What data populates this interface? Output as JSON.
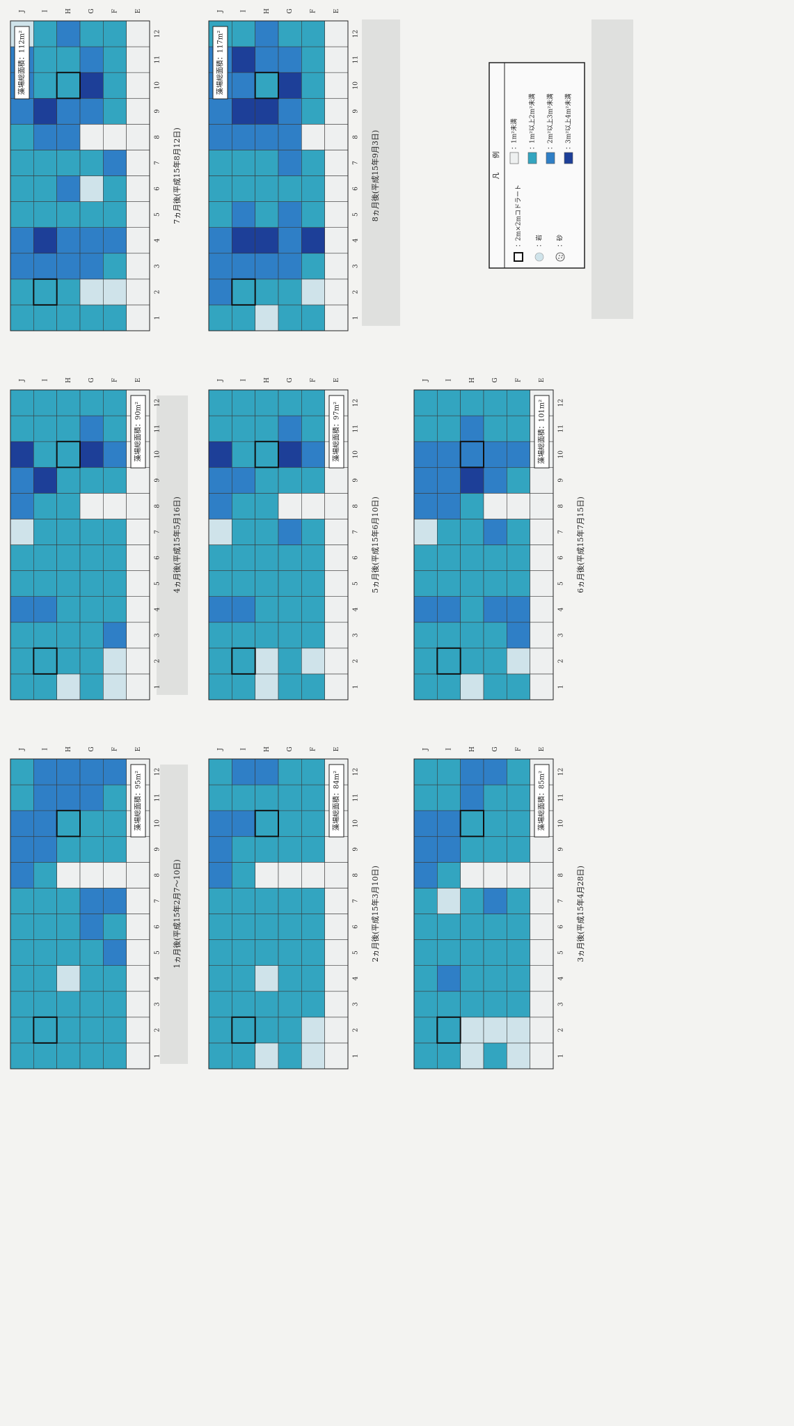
{
  "rows": [
    "J",
    "I",
    "H",
    "G",
    "F",
    "E"
  ],
  "columns": [
    1,
    2,
    3,
    4,
    5,
    6,
    7,
    8,
    9,
    10,
    11,
    12
  ],
  "legend": {
    "title": "凡　　例",
    "items": [
      {
        "label": "：2m×2mコドラート",
        "color": "#111111"
      },
      {
        "label": "：岩",
        "color": "#cfe3ea"
      },
      {
        "label": "：砂",
        "color": "#f4f4f4"
      },
      {
        "label": "：1m²未満",
        "color": "#eef0f0"
      },
      {
        "label": "：1m²以上2m²未満",
        "color": "#33a5c0"
      },
      {
        "label": "：2m²以上3m²未満",
        "color": "#2f7fc6"
      },
      {
        "label": "：3m²以上4m²未満",
        "color": "#1d3f98"
      }
    ]
  },
  "panels": [
    {
      "caption": "1ヵ月後(平成15年2月7～10日)",
      "area_label": "藻場総面積：95m²",
      "quadrats": [
        [
          1,
          1
        ],
        [
          2,
          9
        ]
      ],
      "grid": [
        [
          4,
          4,
          4,
          4,
          4,
          4,
          4,
          5,
          5,
          5,
          4,
          4
        ],
        [
          4,
          4,
          4,
          4,
          4,
          4,
          4,
          4,
          5,
          5,
          5,
          5
        ],
        [
          4,
          4,
          4,
          1,
          4,
          4,
          4,
          3,
          4,
          4,
          5,
          5
        ],
        [
          4,
          4,
          4,
          4,
          4,
          5,
          5,
          3,
          4,
          4,
          5,
          5
        ],
        [
          4,
          4,
          4,
          4,
          5,
          4,
          5,
          3,
          4,
          4,
          4,
          5
        ],
        [
          3,
          3,
          3,
          3,
          3,
          3,
          3,
          3,
          3,
          3,
          3,
          3
        ]
      ]
    },
    {
      "caption": "2ヵ月後(平成15年3月10日)",
      "area_label": "藻場総面積：84m²",
      "quadrats": [
        [
          1,
          1
        ],
        [
          2,
          9
        ]
      ],
      "grid": [
        [
          4,
          4,
          4,
          4,
          4,
          4,
          4,
          5,
          5,
          5,
          4,
          4
        ],
        [
          4,
          4,
          4,
          4,
          4,
          4,
          4,
          4,
          4,
          5,
          4,
          5
        ],
        [
          1,
          4,
          4,
          1,
          4,
          4,
          4,
          3,
          4,
          4,
          4,
          5
        ],
        [
          4,
          4,
          4,
          4,
          4,
          4,
          4,
          3,
          4,
          4,
          4,
          4
        ],
        [
          1,
          1,
          4,
          4,
          4,
          4,
          4,
          3,
          4,
          4,
          4,
          4
        ],
        [
          3,
          3,
          3,
          3,
          3,
          3,
          3,
          3,
          3,
          3,
          3,
          3
        ]
      ]
    },
    {
      "caption": "3ヵ月後(平成15年4月28日)",
      "area_label": "藻場総面積：85m²",
      "quadrats": [
        [
          1,
          1
        ],
        [
          2,
          9
        ]
      ],
      "grid": [
        [
          4,
          4,
          4,
          4,
          4,
          4,
          4,
          5,
          5,
          5,
          4,
          4
        ],
        [
          4,
          4,
          4,
          5,
          4,
          4,
          1,
          4,
          5,
          5,
          4,
          4
        ],
        [
          1,
          1,
          4,
          4,
          4,
          4,
          4,
          3,
          4,
          4,
          5,
          5
        ],
        [
          4,
          1,
          4,
          4,
          4,
          4,
          5,
          3,
          4,
          4,
          4,
          5
        ],
        [
          1,
          1,
          4,
          4,
          4,
          4,
          4,
          3,
          4,
          4,
          4,
          4
        ],
        [
          3,
          3,
          3,
          3,
          3,
          3,
          3,
          3,
          3,
          3,
          3,
          3
        ]
      ]
    },
    {
      "caption": "4ヵ月後(平成15年5月16日)",
      "area_label": "藻場総面積：90m²",
      "quadrats": [
        [
          1,
          1
        ],
        [
          2,
          9
        ]
      ],
      "grid": [
        [
          4,
          4,
          4,
          5,
          4,
          4,
          1,
          5,
          5,
          6,
          4,
          4
        ],
        [
          4,
          4,
          4,
          5,
          4,
          4,
          4,
          4,
          6,
          4,
          4,
          4
        ],
        [
          1,
          4,
          4,
          4,
          4,
          4,
          4,
          4,
          4,
          4,
          4,
          4
        ],
        [
          4,
          4,
          4,
          4,
          4,
          4,
          4,
          3,
          4,
          6,
          5,
          4
        ],
        [
          1,
          1,
          5,
          4,
          4,
          4,
          4,
          3,
          4,
          5,
          4,
          4
        ],
        [
          3,
          3,
          3,
          3,
          3,
          3,
          3,
          3,
          3,
          3,
          3,
          3
        ]
      ]
    },
    {
      "caption": "5ヵ月後(平成15年6月10日)",
      "area_label": "藻場総面積：97m²",
      "quadrats": [
        [
          1,
          1
        ],
        [
          2,
          9
        ]
      ],
      "grid": [
        [
          4,
          4,
          4,
          5,
          4,
          4,
          1,
          5,
          5,
          6,
          4,
          4
        ],
        [
          4,
          4,
          4,
          5,
          4,
          4,
          4,
          4,
          5,
          4,
          4,
          4
        ],
        [
          1,
          1,
          4,
          4,
          4,
          4,
          4,
          4,
          4,
          4,
          4,
          4
        ],
        [
          4,
          4,
          4,
          4,
          4,
          4,
          5,
          3,
          4,
          6,
          5,
          4
        ],
        [
          4,
          1,
          4,
          4,
          4,
          4,
          4,
          3,
          4,
          5,
          4,
          4
        ],
        [
          3,
          3,
          3,
          3,
          3,
          3,
          3,
          3,
          3,
          3,
          3,
          3
        ]
      ]
    },
    {
      "caption": "6ヵ月後(平成15年7月15日)",
      "area_label": "藻場総面積：101m²",
      "quadrats": [
        [
          1,
          1
        ],
        [
          2,
          9
        ]
      ],
      "grid": [
        [
          4,
          4,
          4,
          5,
          4,
          4,
          1,
          5,
          5,
          5,
          4,
          4
        ],
        [
          4,
          4,
          4,
          5,
          4,
          4,
          4,
          5,
          5,
          5,
          4,
          4
        ],
        [
          1,
          4,
          4,
          4,
          4,
          4,
          4,
          4,
          6,
          5,
          5,
          4
        ],
        [
          4,
          4,
          4,
          5,
          4,
          4,
          5,
          3,
          5,
          5,
          4,
          4
        ],
        [
          4,
          1,
          5,
          5,
          4,
          4,
          4,
          3,
          4,
          5,
          4,
          4
        ],
        [
          3,
          3,
          3,
          3,
          3,
          3,
          3,
          3,
          3,
          3,
          3,
          3
        ]
      ]
    },
    {
      "caption": "7ヵ月後(平成15年8月12日)",
      "area_label": "藻場総面積：112m²",
      "quadrats": [
        [
          1,
          1
        ],
        [
          2,
          9
        ]
      ],
      "grid": [
        [
          4,
          4,
          5,
          5,
          4,
          4,
          4,
          4,
          5,
          5,
          5,
          1
        ],
        [
          4,
          4,
          5,
          6,
          4,
          4,
          4,
          5,
          6,
          4,
          4,
          4
        ],
        [
          4,
          4,
          5,
          5,
          4,
          5,
          4,
          5,
          5,
          4,
          4,
          5
        ],
        [
          4,
          1,
          5,
          5,
          4,
          1,
          4,
          3,
          5,
          6,
          5,
          4
        ],
        [
          4,
          1,
          4,
          5,
          4,
          4,
          5,
          3,
          4,
          4,
          4,
          4
        ],
        [
          3,
          3,
          3,
          3,
          3,
          3,
          3,
          3,
          3,
          3,
          3,
          3
        ]
      ]
    },
    {
      "caption": "8ヵ月後(平成15年9月3日)",
      "area_label": "藻場総面積：117m²",
      "quadrats": [
        [
          1,
          1
        ],
        [
          2,
          9
        ]
      ],
      "grid": [
        [
          4,
          5,
          5,
          5,
          4,
          4,
          4,
          5,
          5,
          5,
          5,
          4
        ],
        [
          4,
          4,
          5,
          6,
          5,
          4,
          4,
          5,
          6,
          5,
          6,
          4
        ],
        [
          1,
          4,
          5,
          6,
          4,
          4,
          4,
          5,
          6,
          4,
          5,
          5
        ],
        [
          4,
          4,
          5,
          5,
          5,
          4,
          5,
          5,
          5,
          6,
          5,
          4
        ],
        [
          4,
          1,
          4,
          6,
          4,
          4,
          4,
          3,
          4,
          4,
          4,
          4
        ],
        [
          3,
          3,
          3,
          3,
          3,
          3,
          3,
          3,
          3,
          3,
          3,
          3
        ]
      ]
    }
  ]
}
